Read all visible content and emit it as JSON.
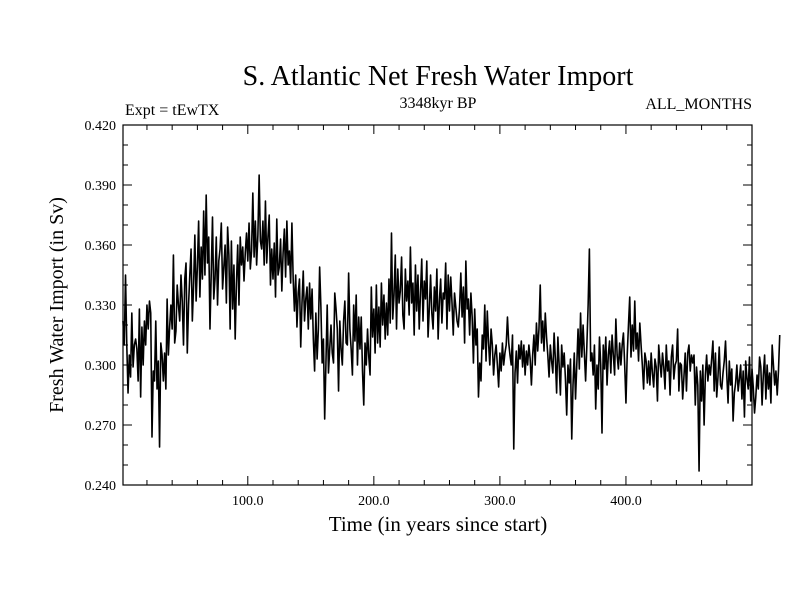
{
  "chart_data": {
    "type": "line",
    "title": "S. Atlantic Net Fresh Water Import",
    "subtitle_left": "Expt = tEwTX",
    "subtitle_center": "3348kyr BP",
    "subtitle_right": "ALL_MONTHS",
    "xlabel": "Time (in years since start)",
    "ylabel": "Fresh Water Import (in Sv)",
    "xlim": [
      1,
      500
    ],
    "ylim": [
      0.24,
      0.42
    ],
    "xticks": [
      100,
      200,
      300,
      400
    ],
    "xtick_labels": [
      "100.0",
      "200.0",
      "300.0",
      "400.0"
    ],
    "yticks": [
      0.24,
      0.27,
      0.3,
      0.33,
      0.36,
      0.39,
      0.42
    ],
    "ytick_labels": [
      "0.240",
      "0.270",
      "0.300",
      "0.330",
      "0.360",
      "0.390",
      "0.420"
    ],
    "series": [
      {
        "name": "Net fresh water import",
        "color": "#000000",
        "x_start": 1,
        "x_step": 1,
        "values": [
          0.322,
          0.31,
          0.345,
          0.31,
          0.286,
          0.305,
          0.294,
          0.326,
          0.299,
          0.31,
          0.313,
          0.308,
          0.292,
          0.328,
          0.284,
          0.319,
          0.3,
          0.322,
          0.31,
          0.33,
          0.318,
          0.332,
          0.326,
          0.264,
          0.297,
          0.292,
          0.322,
          0.288,
          0.302,
          0.259,
          0.311,
          0.305,
          0.292,
          0.306,
          0.288,
          0.333,
          0.305,
          0.319,
          0.33,
          0.318,
          0.355,
          0.311,
          0.317,
          0.34,
          0.33,
          0.322,
          0.345,
          0.332,
          0.31,
          0.343,
          0.351,
          0.306,
          0.33,
          0.345,
          0.358,
          0.322,
          0.34,
          0.365,
          0.332,
          0.349,
          0.372,
          0.334,
          0.359,
          0.343,
          0.377,
          0.345,
          0.385,
          0.351,
          0.364,
          0.318,
          0.346,
          0.374,
          0.333,
          0.343,
          0.364,
          0.33,
          0.352,
          0.358,
          0.371,
          0.338,
          0.349,
          0.36,
          0.331,
          0.369,
          0.355,
          0.318,
          0.362,
          0.328,
          0.35,
          0.313,
          0.341,
          0.36,
          0.33,
          0.364,
          0.35,
          0.359,
          0.342,
          0.356,
          0.366,
          0.352,
          0.371,
          0.348,
          0.357,
          0.386,
          0.354,
          0.372,
          0.35,
          0.365,
          0.395,
          0.362,
          0.358,
          0.372,
          0.35,
          0.382,
          0.351,
          0.364,
          0.375,
          0.34,
          0.358,
          0.343,
          0.361,
          0.334,
          0.373,
          0.345,
          0.349,
          0.363,
          0.337,
          0.356,
          0.368,
          0.344,
          0.372,
          0.35,
          0.357,
          0.341,
          0.371,
          0.343,
          0.327,
          0.345,
          0.319,
          0.336,
          0.343,
          0.309,
          0.331,
          0.347,
          0.322,
          0.333,
          0.339,
          0.318,
          0.341,
          0.323,
          0.338,
          0.313,
          0.297,
          0.326,
          0.303,
          0.318,
          0.349,
          0.329,
          0.301,
          0.313,
          0.273,
          0.301,
          0.33,
          0.296,
          0.308,
          0.32,
          0.306,
          0.301,
          0.336,
          0.328,
          0.318,
          0.287,
          0.322,
          0.308,
          0.3,
          0.322,
          0.332,
          0.311,
          0.31,
          0.346,
          0.318,
          0.308,
          0.295,
          0.33,
          0.312,
          0.335,
          0.3,
          0.324,
          0.308,
          0.324,
          0.297,
          0.28,
          0.311,
          0.3,
          0.318,
          0.304,
          0.295,
          0.339,
          0.314,
          0.328,
          0.306,
          0.34,
          0.311,
          0.329,
          0.309,
          0.341,
          0.32,
          0.335,
          0.313,
          0.331,
          0.315,
          0.343,
          0.321,
          0.366,
          0.323,
          0.335,
          0.355,
          0.318,
          0.348,
          0.331,
          0.337,
          0.354,
          0.325,
          0.318,
          0.348,
          0.332,
          0.342,
          0.325,
          0.359,
          0.331,
          0.341,
          0.315,
          0.35,
          0.327,
          0.345,
          0.318,
          0.336,
          0.353,
          0.322,
          0.342,
          0.333,
          0.352,
          0.314,
          0.328,
          0.345,
          0.326,
          0.318,
          0.339,
          0.327,
          0.348,
          0.313,
          0.332,
          0.343,
          0.321,
          0.336,
          0.333,
          0.351,
          0.318,
          0.345,
          0.327,
          0.344,
          0.331,
          0.315,
          0.336,
          0.329,
          0.322,
          0.319,
          0.329,
          0.346,
          0.324,
          0.339,
          0.311,
          0.352,
          0.328,
          0.333,
          0.315,
          0.336,
          0.324,
          0.301,
          0.328,
          0.31,
          0.318,
          0.284,
          0.301,
          0.292,
          0.315,
          0.308,
          0.33,
          0.302,
          0.327,
          0.311,
          0.3,
          0.318,
          0.31,
          0.295,
          0.305,
          0.31,
          0.3,
          0.289,
          0.306,
          0.297,
          0.311,
          0.3,
          0.306,
          0.31,
          0.324,
          0.311,
          0.305,
          0.3,
          0.315,
          0.258,
          0.296,
          0.307,
          0.291,
          0.31,
          0.303,
          0.312,
          0.299,
          0.31,
          0.295,
          0.307,
          0.3,
          0.31,
          0.303,
          0.29,
          0.305,
          0.315,
          0.3,
          0.321,
          0.307,
          0.318,
          0.34,
          0.311,
          0.322,
          0.307,
          0.326,
          0.314,
          0.305,
          0.294,
          0.31,
          0.302,
          0.296,
          0.316,
          0.303,
          0.286,
          0.314,
          0.3,
          0.285,
          0.31,
          0.299,
          0.306,
          0.293,
          0.275,
          0.3,
          0.291,
          0.303,
          0.263,
          0.29,
          0.306,
          0.283,
          0.3,
          0.318,
          0.298,
          0.326,
          0.304,
          0.32,
          0.306,
          0.292,
          0.31,
          0.33,
          0.358,
          0.302,
          0.306,
          0.295,
          0.31,
          0.278,
          0.3,
          0.288,
          0.314,
          0.3,
          0.266,
          0.31,
          0.298,
          0.314,
          0.29,
          0.305,
          0.312,
          0.296,
          0.315,
          0.305,
          0.295,
          0.323,
          0.305,
          0.298,
          0.311,
          0.3,
          0.31,
          0.316,
          0.3,
          0.281,
          0.305,
          0.32,
          0.334,
          0.304,
          0.32,
          0.307,
          0.332,
          0.308,
          0.316,
          0.302,
          0.321,
          0.31,
          0.3,
          0.288,
          0.306,
          0.302,
          0.291,
          0.302,
          0.29,
          0.306,
          0.296,
          0.289,
          0.303,
          0.299,
          0.282,
          0.31,
          0.301,
          0.294,
          0.306,
          0.299,
          0.288,
          0.31,
          0.297,
          0.302,
          0.285,
          0.304,
          0.31,
          0.293,
          0.3,
          0.302,
          0.318,
          0.287,
          0.301,
          0.3,
          0.283,
          0.294,
          0.306,
          0.287,
          0.306,
          0.31,
          0.297,
          0.305,
          0.301,
          0.305,
          0.28,
          0.299,
          0.29,
          0.247,
          0.297,
          0.282,
          0.3,
          0.27,
          0.295,
          0.305,
          0.292,
          0.3,
          0.295,
          0.303,
          0.312,
          0.287,
          0.306,
          0.284,
          0.294,
          0.309,
          0.29,
          0.288,
          0.296,
          0.302,
          0.312,
          0.295,
          0.281,
          0.302,
          0.29,
          0.298,
          0.272,
          0.286,
          0.291,
          0.3,
          0.287,
          0.293,
          0.3,
          0.283,
          0.297,
          0.274,
          0.302,
          0.293,
          0.288,
          0.304,
          0.282,
          0.298,
          0.289,
          0.276,
          0.284,
          0.295,
          0.288,
          0.304,
          0.299,
          0.28,
          0.295,
          0.305,
          0.283,
          0.3,
          0.288,
          0.296,
          0.281,
          0.31,
          0.3,
          0.29,
          0.297,
          0.285,
          0.297,
          0.315
        ]
      }
    ]
  }
}
